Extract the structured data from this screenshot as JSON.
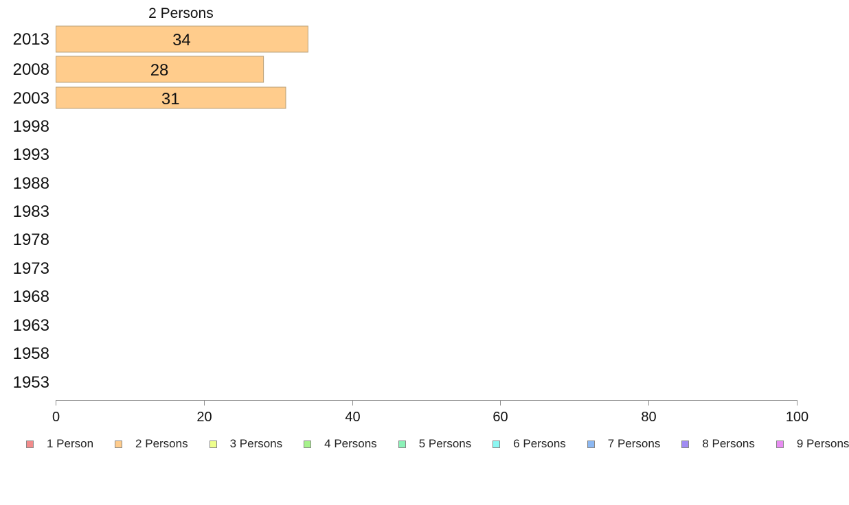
{
  "chart_data": {
    "type": "bar",
    "orientation": "horizontal",
    "title": "2 Persons",
    "categories": [
      "2013",
      "2008",
      "2003",
      "1998",
      "1993",
      "1988",
      "1983",
      "1978",
      "1973",
      "1968",
      "1963",
      "1958",
      "1953"
    ],
    "series": [
      {
        "name": "2 Persons",
        "color": "#ffcc8c",
        "values": [
          34,
          28,
          31,
          null,
          null,
          null,
          null,
          null,
          null,
          null,
          null,
          null,
          null
        ]
      }
    ],
    "xlim": [
      0,
      100
    ],
    "xticks": [
      "0",
      "20",
      "40",
      "60",
      "80",
      "100"
    ],
    "xlabel": "",
    "ylabel": "",
    "grid": false,
    "legend_position": "bottom",
    "legend": [
      {
        "label": "1 Person",
        "color": "#f28b8b"
      },
      {
        "label": "2 Persons",
        "color": "#ffcc8c"
      },
      {
        "label": "3 Persons",
        "color": "#eeff8c"
      },
      {
        "label": "4 Persons",
        "color": "#a6f28b"
      },
      {
        "label": "5 Persons",
        "color": "#8cf2b8"
      },
      {
        "label": "6 Persons",
        "color": "#8cf7f2"
      },
      {
        "label": "7 Persons",
        "color": "#8cb8f2"
      },
      {
        "label": "8 Persons",
        "color": "#a08cf2"
      },
      {
        "label": "9 Persons",
        "color": "#e88cf2"
      }
    ]
  }
}
